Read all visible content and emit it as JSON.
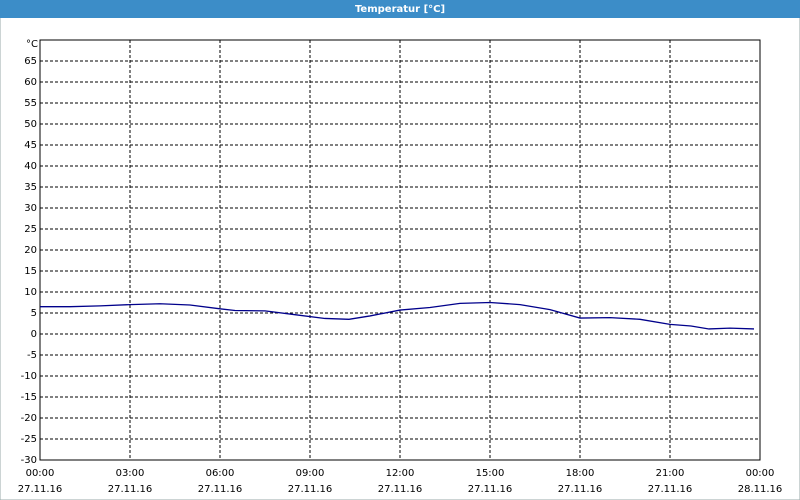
{
  "chart_data": {
    "type": "line",
    "title": "Temperatur [°C]",
    "y_label": "°C",
    "x": [
      0,
      1,
      2,
      3,
      4,
      5,
      6,
      6.5,
      7.5,
      8.5,
      9.5,
      10.3,
      11,
      12,
      13,
      14,
      15,
      16,
      17,
      18,
      19,
      20,
      21,
      21.7,
      22.3,
      23,
      23.8
    ],
    "series": [
      {
        "name": "Temperatur",
        "color": "#00008b",
        "values": [
          6.5,
          6.5,
          6.7,
          7.0,
          7.2,
          6.9,
          6.0,
          5.6,
          5.5,
          4.6,
          3.7,
          3.5,
          4.3,
          5.7,
          6.3,
          7.3,
          7.5,
          7.0,
          5.8,
          3.8,
          3.9,
          3.5,
          2.3,
          1.9,
          1.2,
          1.4,
          1.2
        ]
      }
    ],
    "xlim": [
      0,
      24
    ],
    "xticks": [
      {
        "value": 0,
        "label": "00:00",
        "date": "27.11.16"
      },
      {
        "value": 3,
        "label": "03:00",
        "date": "27.11.16"
      },
      {
        "value": 6,
        "label": "06:00",
        "date": "27.11.16"
      },
      {
        "value": 9,
        "label": "09:00",
        "date": "27.11.16"
      },
      {
        "value": 12,
        "label": "12:00",
        "date": "27.11.16"
      },
      {
        "value": 15,
        "label": "15:00",
        "date": "27.11.16"
      },
      {
        "value": 18,
        "label": "18:00",
        "date": "27.11.16"
      },
      {
        "value": 21,
        "label": "21:00",
        "date": "27.11.16"
      },
      {
        "value": 24,
        "label": "00:00",
        "date": "28.11.16"
      }
    ],
    "ylim": [
      -30,
      70
    ],
    "yticks": [
      -30,
      -25,
      -20,
      -15,
      -10,
      -5,
      0,
      5,
      10,
      15,
      20,
      25,
      30,
      35,
      40,
      45,
      50,
      55,
      60,
      65
    ],
    "grid": true
  }
}
